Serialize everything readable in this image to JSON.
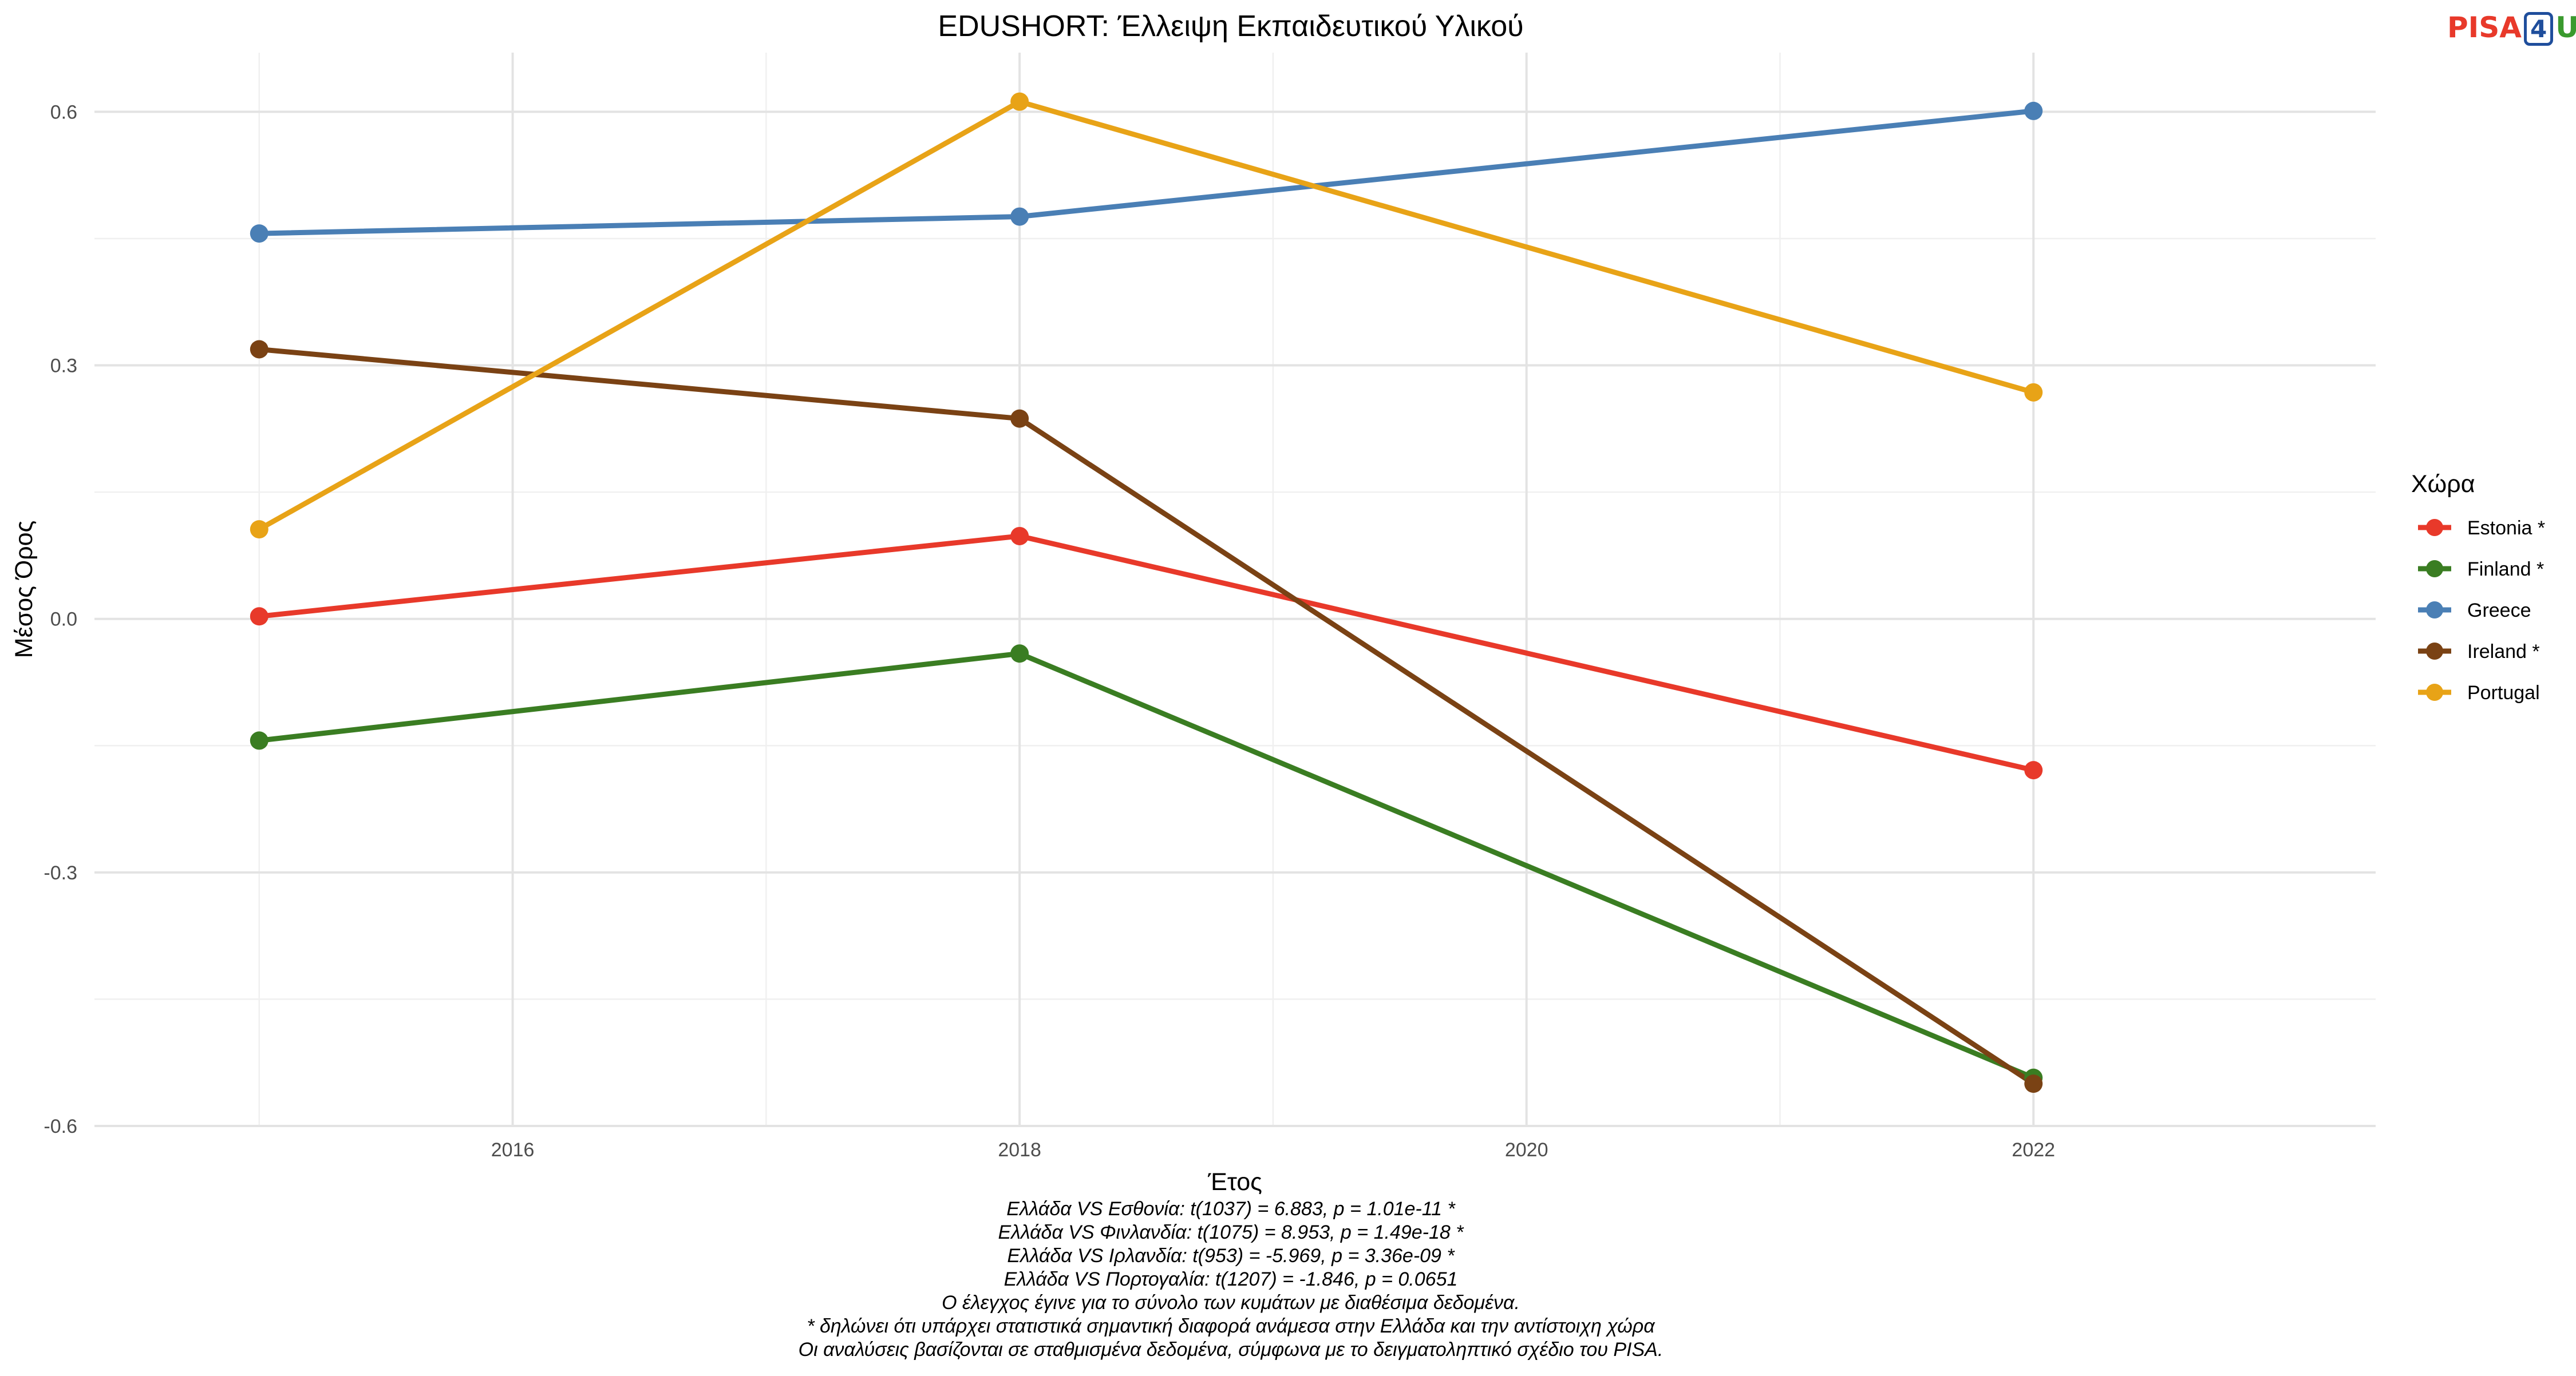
{
  "chart_data": {
    "type": "line",
    "title": "EDUSHORT: Έλλειψη Εκπαιδευτικού Υλικού",
    "xlabel": "Έτος",
    "ylabel": "Μέσος Όρος",
    "x": [
      2015,
      2018,
      2022
    ],
    "x_ticks": [
      "2016",
      "2018",
      "2020",
      "2022"
    ],
    "y_ticks": [
      "-0.6",
      "-0.3",
      "0.0",
      "0.3",
      "0.6"
    ],
    "xlim": [
      2014.35,
      2023.35
    ],
    "ylim": [
      -0.6,
      0.67
    ],
    "grid": true,
    "legend_title": "Χώρα",
    "legend_position": "right",
    "series": [
      {
        "name": "Estonia *",
        "color": "#e8392a",
        "values": [
          0.003,
          0.098,
          -0.179
        ]
      },
      {
        "name": "Finland *",
        "color": "#3a7d22",
        "values": [
          -0.144,
          -0.041,
          -0.543
        ]
      },
      {
        "name": "Greece",
        "color": "#4a7fb5",
        "values": [
          0.456,
          0.476,
          0.601
        ]
      },
      {
        "name": "Ireland *",
        "color": "#7a4214",
        "values": [
          0.319,
          0.237,
          -0.55
        ]
      },
      {
        "name": "Portugal",
        "color": "#e8a317",
        "values": [
          0.106,
          0.612,
          0.268
        ]
      }
    ],
    "caption": [
      "Ελλάδα VS Εσθονία: t(1037) = 6.883, p = 1.01e-11 *",
      "Ελλάδα VS Φινλανδία: t(1075) = 8.953, p = 1.49e-18 *",
      "Ελλάδα VS Ιρλανδία: t(953) = -5.969, p = 3.36e-09 *",
      "Ελλάδα VS Πορτογαλία: t(1207) = -1.846, p = 0.0651",
      "Ο έλεγχος έγινε για το σύνολο των κυμάτων με διαθέσιμα δεδομένα.",
      "* δηλώνει ότι υπάρχει στατιστικά σημαντική διαφορά ανάμεσα στην Ελλάδα και την αντίστοιχη χώρα",
      "Οι αναλύσεις βασίζονται σε σταθμισμένα δεδομένα, σύμφωνα με το δειγματοληπτικό σχέδιο του PISA."
    ]
  },
  "logo": {
    "part1": "PISA",
    "part2": "4",
    "part3": "U"
  }
}
